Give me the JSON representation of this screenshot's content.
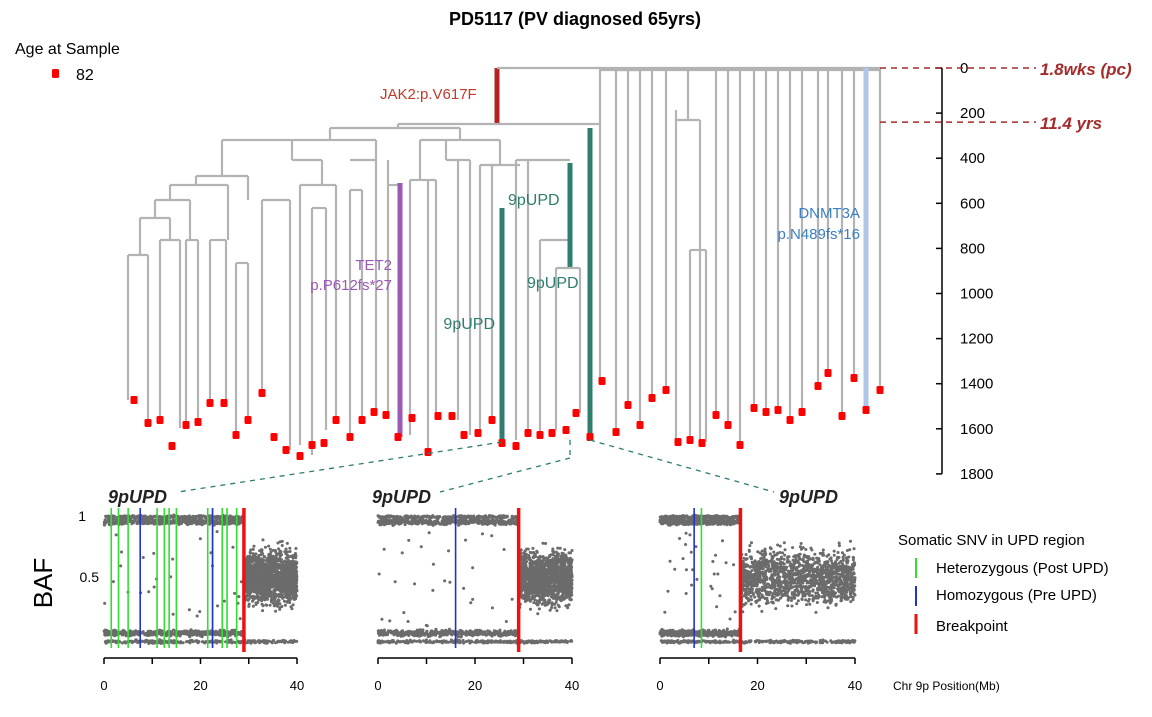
{
  "title": "PD5117 (PV diagnosed 65yrs)",
  "colors": {
    "tree": "#b3b3b3",
    "tip": "#ff0000",
    "jak2": "#b22222",
    "tet2": "#9b59b6",
    "upd": "#2e7d6e",
    "dnmt3a": "#aec6e8",
    "dnmt3a_text": "#3b7fc4",
    "baf_points": "#6b6b6b",
    "het": "#33dd33",
    "hom": "#2233cc",
    "breakpoint": "#ee1111",
    "ref_line": "#a52a2a"
  },
  "legend_age": {
    "title": "Age at Sample",
    "label": "82"
  },
  "tree": {
    "axis_ticks": [
      "0",
      "200",
      "400",
      "600",
      "800",
      "1000",
      "1200",
      "1400",
      "1600",
      "1800"
    ],
    "ref_lines": [
      {
        "label": "1.8wks (pc)",
        "value": 0
      },
      {
        "label": "11.4 yrs",
        "value": 240
      }
    ],
    "mutations": {
      "jak2": "JAK2:p.V617F",
      "tet2_l1": "TET2",
      "tet2_l2": "p.P612fs*27",
      "upd_a": "9pUPD",
      "upd_b": "9pUPD",
      "upd_c": "9pUPD",
      "dnmt3a_l1": "DNMT3A",
      "dnmt3a_l2": "p.N489fs*16"
    }
  },
  "baf": {
    "ylabel": "BAF",
    "yticks": [
      "1",
      "0.5"
    ],
    "xticks": [
      "0",
      "20",
      "40"
    ],
    "xlabel": "Chr 9p Position(Mb)",
    "panel_title": "9pUPD",
    "legend": {
      "title": "Somatic SNV in UPD region",
      "het": "Heterozygous (Post UPD)",
      "hom": "Homozygous  (Pre UPD)",
      "bp": "Breakpoint"
    }
  },
  "chart_data": [
    {
      "type": "tree",
      "title": "PD5117 (PV diagnosed 65yrs)",
      "y_axis": {
        "range": [
          0,
          1800
        ],
        "reversed": true,
        "ticks": [
          0,
          200,
          400,
          600,
          800,
          1000,
          1200,
          1400,
          1600,
          1800
        ]
      },
      "sample_age": 82,
      "n_tips": 57,
      "driver_branches": [
        "JAK2:p.V617F",
        "TET2 p.P612fs*27",
        "9pUPD",
        "9pUPD",
        "9pUPD",
        "DNMT3A p.N489fs*16"
      ],
      "reference_lines": [
        {
          "label": "1.8wks (pc)",
          "y": 0
        },
        {
          "label": "11.4 yrs",
          "y": 240
        }
      ]
    },
    {
      "type": "scatter",
      "title": "9pUPD",
      "xlabel": "Chr 9p Position(Mb)",
      "ylabel": "BAF",
      "xlim": [
        0,
        40
      ],
      "breakpoint_mb": 29,
      "heterozygous_snv_mb": [
        1.5,
        3,
        5,
        11,
        12.5,
        13.5,
        15,
        21.5,
        22.5,
        24.5,
        25.5,
        27.5
      ],
      "homozygous_snv_mb": [
        7.5,
        22.5
      ]
    },
    {
      "type": "scatter",
      "title": "9pUPD",
      "xlabel": "Chr 9p Position(Mb)",
      "ylabel": "BAF",
      "xlim": [
        0,
        40
      ],
      "breakpoint_mb": 29,
      "heterozygous_snv_mb": [],
      "homozygous_snv_mb": [
        16
      ]
    },
    {
      "type": "scatter",
      "title": "9pUPD",
      "xlabel": "Chr 9p Position(Mb)",
      "ylabel": "BAF",
      "xlim": [
        0,
        40
      ],
      "breakpoint_mb": 16.5,
      "heterozygous_snv_mb": [
        8.5
      ],
      "homozygous_snv_mb": [
        7
      ]
    }
  ]
}
